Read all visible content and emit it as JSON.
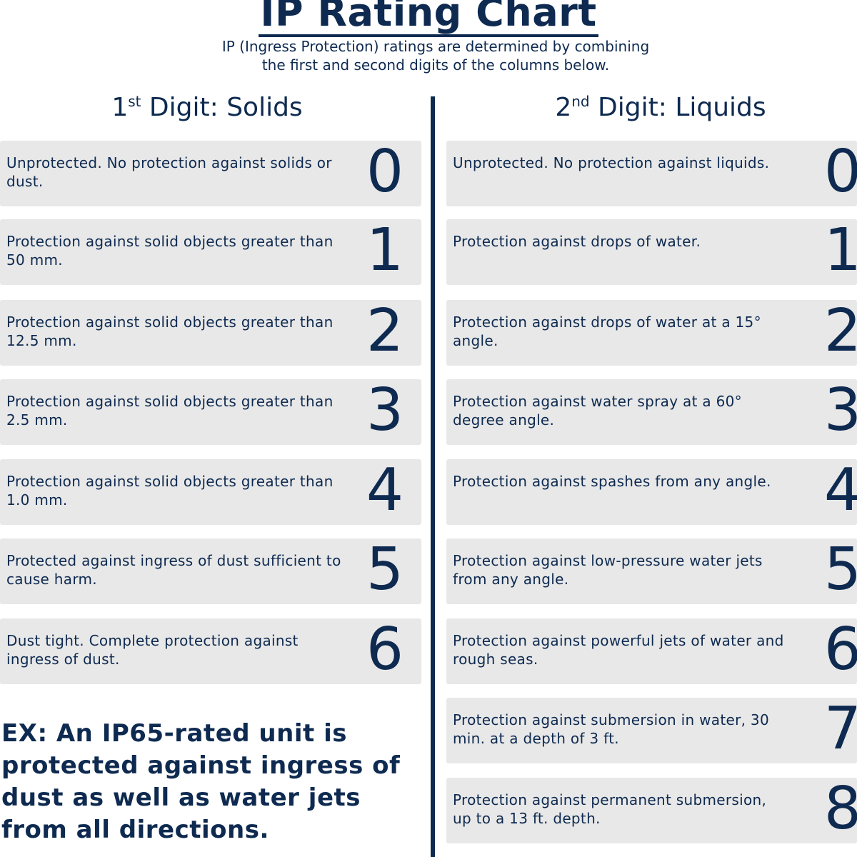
{
  "title": "IP Rating Chart",
  "subtitle_line1": "IP (Ingress Protection) ratings are determined by combining",
  "subtitle_line2": "the first and second digits of the columns below.",
  "solids": {
    "heading_num": "1",
    "heading_sup": "st",
    "heading_text": " Digit: Solids",
    "rows": [
      {
        "digit": "0",
        "text": "Unprotected. No protection against solids or dust."
      },
      {
        "digit": "1",
        "text": "Protection against solid objects greater than 50 mm."
      },
      {
        "digit": "2",
        "text": "Protection against solid objects greater than 12.5 mm."
      },
      {
        "digit": "3",
        "text": "Protection against solid objects greater than 2.5 mm."
      },
      {
        "digit": "4",
        "text": "Protection against solid objects greater than 1.0 mm."
      },
      {
        "digit": "5",
        "text": "Protected against ingress of dust sufficient to cause harm."
      },
      {
        "digit": "6",
        "text": "Dust tight. Complete protection against ingress of dust."
      }
    ]
  },
  "liquids": {
    "heading_num": "2",
    "heading_sup": "nd",
    "heading_text": " Digit: Liquids",
    "rows": [
      {
        "digit": "0",
        "text": "Unprotected. No protection against liquids."
      },
      {
        "digit": "1",
        "text": "Protection against drops of water."
      },
      {
        "digit": "2",
        "text": "Protection against drops of water at a 15° angle."
      },
      {
        "digit": "3",
        "text": "Protection against water spray at a 60° degree angle."
      },
      {
        "digit": "4",
        "text": "Protection against spashes from any angle."
      },
      {
        "digit": "5",
        "text": "Protection against low-pressure water jets from any angle."
      },
      {
        "digit": "6",
        "text": "Protection against powerful jets of water and rough seas."
      },
      {
        "digit": "7",
        "text": "Protection against submersion in water, 30 min. at a depth of 3 ft."
      },
      {
        "digit": "8",
        "text": "Protection against permanent submersion, up to a 13 ft. depth."
      }
    ]
  },
  "example": "EX: An IP65-rated unit is protected against ingress of dust as well as water jets from all directions.",
  "colors": {
    "navy": "#0e2a50",
    "row_bg": "#e8e8e8"
  }
}
